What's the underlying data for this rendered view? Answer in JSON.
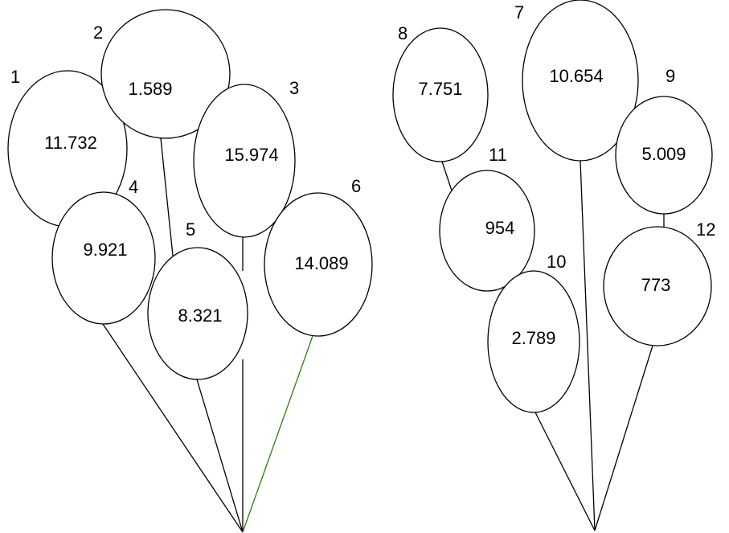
{
  "balloons": [
    {
      "id": "1",
      "value": "11.732"
    },
    {
      "id": "2",
      "value": "1.589"
    },
    {
      "id": "3",
      "value": "15.974"
    },
    {
      "id": "4",
      "value": "9.921"
    },
    {
      "id": "5",
      "value": "8.321"
    },
    {
      "id": "6",
      "value": "14.089"
    },
    {
      "id": "7",
      "value": "10.654"
    },
    {
      "id": "8",
      "value": "7.751"
    },
    {
      "id": "9",
      "value": "5.009"
    },
    {
      "id": "10",
      "value": "2.789"
    },
    {
      "id": "11",
      "value": "954"
    },
    {
      "id": "12",
      "value": "773"
    }
  ],
  "highlight_color": "#2e7d0f",
  "line_color": "#000000"
}
